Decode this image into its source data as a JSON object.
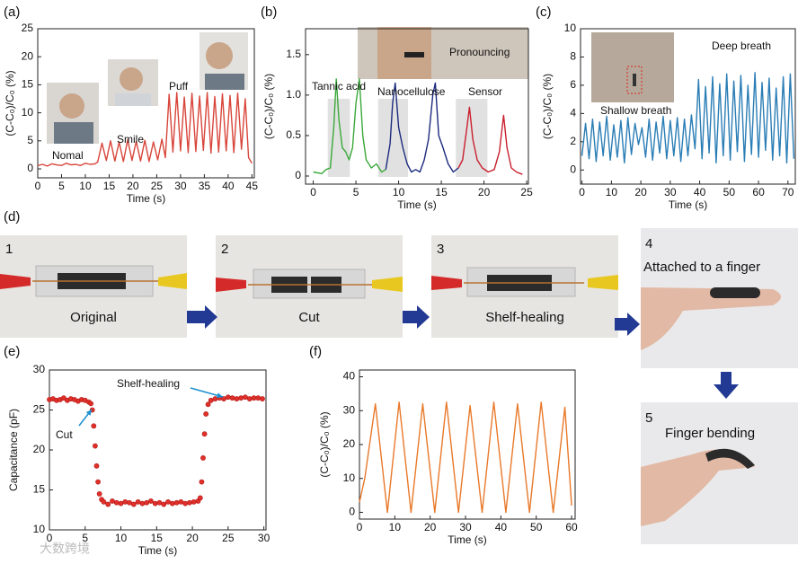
{
  "photo_panels": {
    "panel_label": "(d)",
    "steps": [
      {
        "number": "1",
        "caption": "Original"
      },
      {
        "number": "2",
        "caption": "Cut"
      },
      {
        "number": "3",
        "caption": "Shelf-healing"
      },
      {
        "number": "4",
        "caption": "Attached to a  finger"
      },
      {
        "number": "5",
        "caption": "Finger bending"
      }
    ]
  },
  "watermark": "大数跨境",
  "chart_data": [
    {
      "type": "line",
      "panel_label": "(a)",
      "xlabel": "Time (s)",
      "ylabel": "(C-C₀)/C₀ (%)",
      "color": "#d8453a",
      "x": [
        0,
        1,
        2,
        3,
        4,
        5,
        6,
        7,
        8,
        9,
        10,
        11,
        12,
        12.6,
        13.5,
        14.4,
        15.3,
        16.2,
        17.1,
        18.0,
        18.9,
        19.8,
        20.7,
        21.6,
        22.5,
        23.4,
        24.3,
        25.2,
        26.1,
        26.8,
        27.6,
        28.4,
        29.2,
        30.0,
        30.8,
        31.6,
        32.4,
        33.2,
        34.0,
        34.8,
        35.6,
        36.4,
        37.2,
        38.0,
        38.8,
        39.6,
        40.4,
        41.2,
        42.0,
        42.8,
        43.6,
        44.3,
        45
      ],
      "values": [
        0.6,
        0.8,
        0.5,
        0.9,
        0.7,
        0.6,
        1.0,
        0.7,
        0.8,
        0.6,
        1.0,
        0.8,
        0.9,
        1.2,
        4.6,
        1.5,
        5.0,
        1.4,
        4.8,
        1.3,
        5.2,
        1.5,
        4.9,
        1.4,
        5.1,
        1.3,
        4.8,
        1.6,
        5.3,
        2.0,
        13.3,
        3.0,
        13.6,
        3.2,
        12.8,
        2.9,
        13.5,
        3.1,
        13.0,
        3.3,
        13.6,
        2.8,
        12.9,
        3.0,
        13.4,
        3.2,
        13.1,
        2.9,
        13.5,
        3.5,
        12.5,
        2.0,
        1.0
      ],
      "xlim": [
        0,
        45.5
      ],
      "ylim": [
        -1.6,
        25
      ],
      "xticks": [
        0,
        5,
        10,
        15,
        20,
        25,
        30,
        35,
        40,
        45
      ],
      "yticks": [
        0,
        5,
        10,
        15,
        20,
        25
      ],
      "annotations": [
        "Nomal",
        "Smile",
        "Puff"
      ]
    },
    {
      "type": "line",
      "panel_label": "(b)",
      "xlabel": "Time (s)",
      "ylabel": "(C-C₀)/C₀ (%)",
      "series": [
        {
          "name": "Tannic acid",
          "color": "#3aa83a",
          "x": [
            0,
            1,
            1.5,
            2,
            2.4,
            2.7,
            3.0,
            3.4,
            3.8,
            4.2,
            4.6,
            5.0,
            5.4,
            5.8,
            6.2,
            6.8,
            7.4,
            8.0,
            8.5
          ],
          "values": [
            0.05,
            0.03,
            0.08,
            0.1,
            0.6,
            1.2,
            0.7,
            0.35,
            0.3,
            0.2,
            0.35,
            0.9,
            1.2,
            0.5,
            0.2,
            0.1,
            0.15,
            0.05,
            0.08
          ]
        },
        {
          "name": "Nanocellulose",
          "color": "#1c2a7e",
          "x": [
            8.5,
            9.0,
            9.3,
            9.6,
            10.0,
            10.5,
            11.0,
            11.5,
            12.0,
            12.5,
            13.0,
            13.5,
            14.0,
            14.3,
            14.7,
            15.2,
            15.8,
            16.4,
            17.0
          ],
          "values": [
            0.08,
            0.4,
            0.9,
            1.15,
            0.6,
            0.35,
            0.15,
            0.05,
            0.08,
            0.05,
            0.2,
            0.45,
            1.0,
            1.15,
            0.5,
            0.35,
            0.15,
            0.05,
            0.1
          ]
        },
        {
          "name": "Sensor",
          "color": "#c9202e",
          "x": [
            17.0,
            17.5,
            18.0,
            18.3,
            18.7,
            19.2,
            19.8,
            20.5,
            21.2,
            21.8,
            22.3,
            22.7,
            23.2,
            23.8,
            24.5
          ],
          "values": [
            0.1,
            0.2,
            0.6,
            0.85,
            0.45,
            0.2,
            0.1,
            0.05,
            0.08,
            0.3,
            0.75,
            0.35,
            0.1,
            0.05,
            0.02
          ]
        }
      ],
      "highlights": [
        [
          1.7,
          4.3
        ],
        [
          7.6,
          11.1
        ],
        [
          16.7,
          20.4
        ]
      ],
      "xlim": [
        -0.9,
        25.2
      ],
      "ylim": [
        -0.1,
        1.82
      ],
      "xticks": [
        0,
        5,
        10,
        15,
        20,
        25
      ],
      "yticks": [
        0,
        0.5,
        {
          "value": 1,
          "label": "1.0"
        },
        1.5
      ],
      "annotations": [
        "Pronouncing"
      ]
    },
    {
      "type": "line",
      "panel_label": "(c)",
      "xlabel": "Time (s)",
      "ylabel": "(C-C₀)/C₀ (%)",
      "color": "#2a7db5",
      "x": [
        0,
        1.2,
        2.4,
        3.6,
        4.8,
        6,
        7.2,
        8.4,
        9.6,
        10.8,
        12,
        13.2,
        14.4,
        15.6,
        16.8,
        18,
        19.2,
        20.4,
        21.6,
        22.8,
        24,
        25.2,
        26.4,
        27.6,
        28.8,
        30,
        31.2,
        32.4,
        33.6,
        34.8,
        36,
        37.2,
        38.4,
        39.6,
        40.8,
        42,
        43.2,
        44.4,
        45.6,
        46.8,
        48,
        49.2,
        50.4,
        51.6,
        52.8,
        54,
        55.2,
        56.4,
        57.6,
        58.8,
        60,
        61.2,
        62.4,
        63.6,
        64.8,
        66,
        67.2,
        68.4,
        69.6,
        70.8,
        72
      ],
      "values": [
        1.0,
        3.3,
        0.8,
        3.6,
        0.6,
        3.4,
        1.0,
        3.8,
        0.7,
        3.2,
        0.9,
        3.5,
        0.5,
        3.7,
        1.1,
        3.3,
        1.8,
        3.0,
        0.9,
        3.6,
        0.7,
        3.4,
        1.2,
        3.8,
        0.8,
        3.5,
        1.0,
        3.7,
        0.6,
        3.6,
        1.0,
        3.9,
        1.5,
        6.4,
        0.8,
        5.9,
        1.2,
        6.6,
        0.5,
        6.1,
        1.0,
        6.8,
        0.7,
        6.3,
        1.3,
        6.7,
        0.6,
        6.0,
        1.1,
        6.9,
        0.9,
        6.2,
        1.4,
        6.5,
        0.7,
        5.8,
        1.0,
        6.6,
        0.5,
        6.8,
        0.8
      ],
      "xlim": [
        -0.5,
        72.5
      ],
      "ylim": [
        -1,
        10
      ],
      "xticks": [
        0,
        10,
        20,
        30,
        40,
        50,
        60,
        70
      ],
      "yticks": [
        0,
        2,
        4,
        6,
        8,
        10
      ],
      "annotations": [
        "Deep breath",
        "Shallow breath"
      ]
    },
    {
      "type": "scatter",
      "panel_label": "(e)",
      "xlabel": "Time (s)",
      "ylabel": "Capacitance (pF)",
      "color": "#e0302a",
      "x": [
        0,
        0.5,
        1,
        1.5,
        2,
        2.5,
        3,
        3.5,
        4,
        4.5,
        5,
        5.5,
        5.8,
        6,
        6.2,
        6.4,
        6.6,
        6.8,
        7,
        7.3,
        7.6,
        8.2,
        8.8,
        9.4,
        10,
        10.6,
        11.2,
        11.8,
        12.4,
        13,
        13.6,
        14.2,
        14.8,
        15.4,
        16,
        16.6,
        17.2,
        17.8,
        18.4,
        19,
        19.6,
        20.2,
        20.8,
        21.1,
        21.3,
        21.5,
        21.7,
        21.9,
        22.2,
        22.6,
        23.2,
        23.8,
        24.4,
        25,
        25.6,
        26.2,
        26.8,
        27.4,
        28,
        28.6,
        29.2,
        29.8
      ],
      "values": [
        26.3,
        26.4,
        26.2,
        26.3,
        26.5,
        26.2,
        26.4,
        26.3,
        26.1,
        26.3,
        26.2,
        26.0,
        25.8,
        25.0,
        23.0,
        20.5,
        18.0,
        16.0,
        14.5,
        13.8,
        13.5,
        13.2,
        13.6,
        13.4,
        13.3,
        13.5,
        13.4,
        13.2,
        13.5,
        13.3,
        13.4,
        13.6,
        13.3,
        13.4,
        13.2,
        13.5,
        13.3,
        13.4,
        13.5,
        13.3,
        13.4,
        13.5,
        13.6,
        14.0,
        16.0,
        19.0,
        22.0,
        24.5,
        25.7,
        26.2,
        26.4,
        26.5,
        26.4,
        26.6,
        26.5,
        26.4,
        26.5,
        26.6,
        26.4,
        26.5,
        26.5,
        26.4
      ],
      "xlim": [
        0,
        30.3
      ],
      "ylim": [
        10,
        30
      ],
      "xticks": [
        0,
        5,
        10,
        15,
        20,
        25,
        30
      ],
      "yticks": [
        10,
        15,
        20,
        25,
        30
      ],
      "annotations": [
        "Cut",
        "Shelf-healing"
      ]
    },
    {
      "type": "line",
      "panel_label": "(f)",
      "xlabel": "Time (s)",
      "ylabel": "(C-C₀)/C₀ (%)",
      "color": "#e8792a",
      "x": [
        0,
        1.5,
        4.5,
        7.9,
        11.2,
        14.6,
        17.9,
        21.3,
        24.6,
        28.0,
        31.3,
        34.7,
        38.0,
        41.4,
        44.7,
        48.1,
        51.4,
        54.8,
        58.1,
        60
      ],
      "values": [
        3,
        10,
        32,
        0,
        32.5,
        0,
        32,
        0,
        32.5,
        0,
        31.5,
        0,
        32.5,
        0,
        32,
        0,
        32.5,
        0,
        31,
        2
      ],
      "xlim": [
        0,
        61
      ],
      "ylim": [
        -2,
        42
      ],
      "xticks": [
        0,
        10,
        20,
        30,
        40,
        50,
        60
      ],
      "yticks": [
        0,
        10,
        20,
        30,
        40
      ]
    }
  ]
}
